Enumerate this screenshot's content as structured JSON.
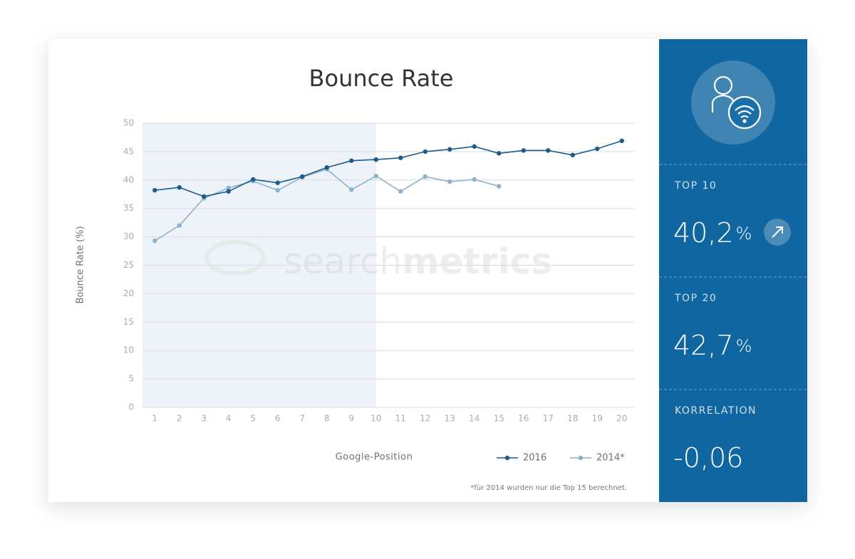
{
  "chart_data": {
    "type": "line",
    "title": "Bounce Rate",
    "ylabel": "Bounce Rate (%)",
    "xlabel": "Google-Position",
    "categories": [
      "1",
      "2",
      "3",
      "4",
      "5",
      "6",
      "7",
      "8",
      "9",
      "10",
      "11",
      "12",
      "13",
      "14",
      "15",
      "16",
      "17",
      "18",
      "19",
      "20"
    ],
    "series": [
      {
        "name": "2016",
        "color": "#1b5c8c",
        "values": [
          38.2,
          38.7,
          37.1,
          38.0,
          40.1,
          39.5,
          40.6,
          42.2,
          43.4,
          43.6,
          43.9,
          45.0,
          45.4,
          45.9,
          44.7,
          45.2,
          45.2,
          44.4,
          45.5,
          46.9
        ]
      },
      {
        "name": "2014*",
        "color": "#8fb2cb",
        "values": [
          29.3,
          32.0,
          36.8,
          38.6,
          39.8,
          38.2,
          40.5,
          41.9,
          38.3,
          40.7,
          38.0,
          40.6,
          39.7,
          40.1,
          38.9,
          null,
          null,
          null,
          null,
          null
        ]
      }
    ],
    "ylim": [
      0,
      50
    ],
    "yticks": [
      0,
      5,
      10,
      15,
      20,
      25,
      30,
      35,
      40,
      45,
      50
    ],
    "grid": true,
    "note": "*für 2014 wurden nur die Top 15 berechnet.",
    "watermark": [
      "search",
      "metrics"
    ]
  },
  "panel": {
    "stats": [
      {
        "label": "TOP 10",
        "value": "40,2",
        "unit": "%"
      },
      {
        "label": "TOP 20",
        "value": "42,7",
        "unit": "%"
      },
      {
        "label": "KORRELATION",
        "value": "-0,06"
      }
    ]
  }
}
